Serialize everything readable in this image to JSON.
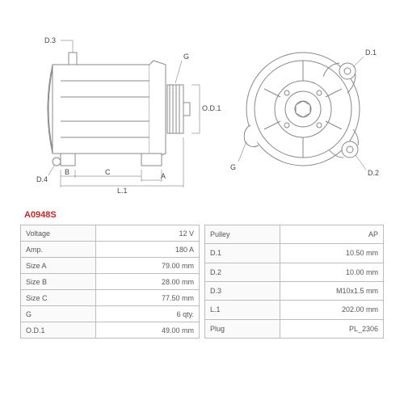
{
  "part_number": "A0948S",
  "drawing": {
    "type": "engineering-drawing",
    "views": [
      "side",
      "front"
    ],
    "stroke_color": "#888",
    "label_color": "#444",
    "dim_labels": {
      "d3": "D.3",
      "d4": "D.4",
      "g_side": "G",
      "b": "B",
      "c": "C",
      "a": "A",
      "l1": "L.1",
      "od1": "O.D.1",
      "d1": "D.1",
      "g_front": "G",
      "d2": "D.2"
    }
  },
  "specs_left": [
    {
      "label": "Voltage",
      "value": "12 V"
    },
    {
      "label": "Amp.",
      "value": "180 A"
    },
    {
      "label": "Size A",
      "value": "79.00 mm"
    },
    {
      "label": "Size B",
      "value": "28.00 mm"
    },
    {
      "label": "Size C",
      "value": "77.50 mm"
    },
    {
      "label": "G",
      "value": "6 qty."
    },
    {
      "label": "O.D.1",
      "value": "49.00 mm"
    }
  ],
  "specs_right": [
    {
      "label": "Pulley",
      "value": "AP"
    },
    {
      "label": "D.1",
      "value": "10.50 mm"
    },
    {
      "label": "D.2",
      "value": "10.00 mm"
    },
    {
      "label": "D.3",
      "value": "M10x1.5 mm"
    },
    {
      "label": "L.1",
      "value": "202.00 mm"
    },
    {
      "label": "Plug",
      "value": "PL_2306"
    }
  ]
}
